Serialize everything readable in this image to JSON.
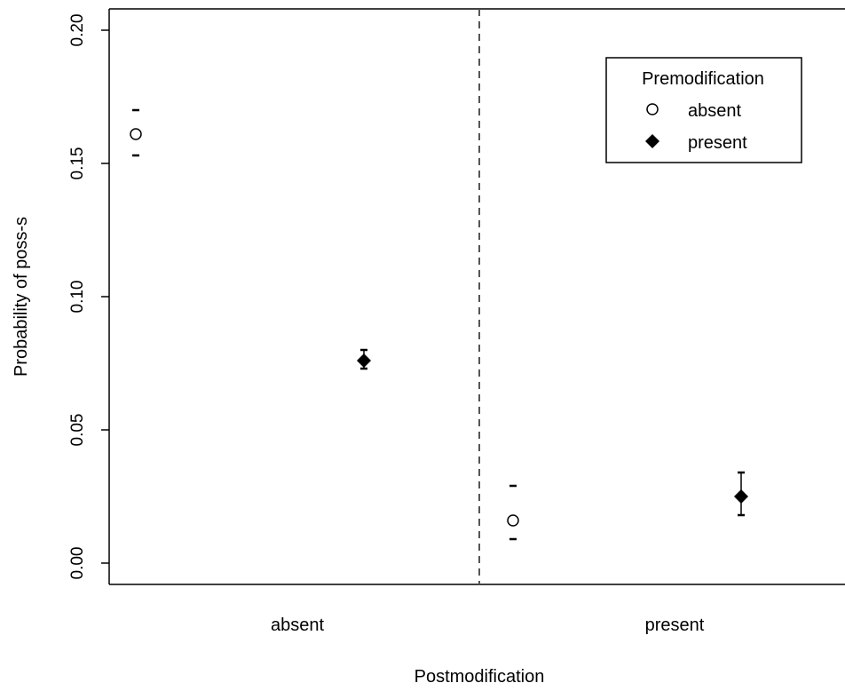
{
  "chart_data": {
    "type": "scatter",
    "title": "",
    "xlabel": "Postmodification",
    "ylabel": "Probability of poss-s",
    "categories": [
      "absent",
      "present"
    ],
    "ylim": [
      0,
      0.2
    ],
    "yticks": [
      0.0,
      0.05,
      0.1,
      0.15,
      0.2
    ],
    "ytick_labels": [
      "0.00",
      "0.05",
      "0.10",
      "0.15",
      "0.20"
    ],
    "divider": "dashed vertical line between categories",
    "legend": {
      "title": "Premodification",
      "placement": "top-right",
      "entries": [
        {
          "label": "absent",
          "marker": "open-circle"
        },
        {
          "label": "present",
          "marker": "filled-diamond"
        }
      ]
    },
    "series": [
      {
        "name": "absent",
        "marker": "open-circle",
        "points": [
          {
            "category": "absent",
            "value": 0.161,
            "lower": 0.153,
            "upper": 0.17
          },
          {
            "category": "present",
            "value": 0.016,
            "lower": 0.009,
            "upper": 0.029
          }
        ]
      },
      {
        "name": "present",
        "marker": "filled-diamond",
        "points": [
          {
            "category": "absent",
            "value": 0.076,
            "lower": 0.073,
            "upper": 0.08
          },
          {
            "category": "present",
            "value": 0.025,
            "lower": 0.018,
            "upper": 0.034
          }
        ]
      }
    ],
    "grid": false
  }
}
